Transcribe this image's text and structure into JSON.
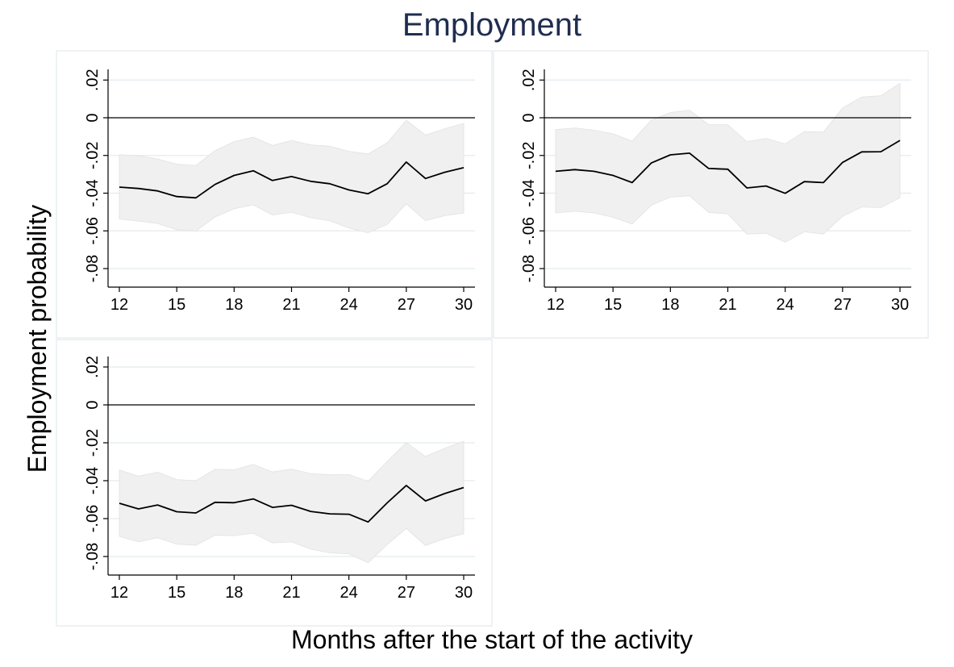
{
  "title": "Employment",
  "ylabel": "Employment probability",
  "xlabel": "Months after the start of the activity",
  "colors": {
    "title": "#1f2d4f",
    "line": "#000000",
    "band": "#f0f0f0",
    "band_edge": "#e2e2e2",
    "grid": "#e8eef0",
    "panel_border": "#dde6ea"
  },
  "chart_data": [
    {
      "type": "line",
      "x": [
        12,
        13,
        14,
        15,
        16,
        17,
        18,
        19,
        20,
        21,
        22,
        23,
        24,
        25,
        26,
        27,
        28,
        29,
        30
      ],
      "y": [
        -0.0368,
        -0.0375,
        -0.0388,
        -0.0418,
        -0.0425,
        -0.0354,
        -0.0306,
        -0.0281,
        -0.0333,
        -0.0312,
        -0.0337,
        -0.035,
        -0.0383,
        -0.0403,
        -0.035,
        -0.0235,
        -0.0322,
        -0.0289,
        -0.0265
      ],
      "ci_upper": [
        -0.0196,
        -0.0201,
        -0.0219,
        -0.0246,
        -0.0253,
        -0.0175,
        -0.0126,
        -0.0103,
        -0.0147,
        -0.012,
        -0.0144,
        -0.0151,
        -0.0178,
        -0.0192,
        -0.0133,
        -0.0013,
        -0.0092,
        -0.0058,
        -0.003
      ],
      "ci_lower": [
        -0.0537,
        -0.0548,
        -0.0561,
        -0.0594,
        -0.0601,
        -0.0526,
        -0.0483,
        -0.0462,
        -0.0516,
        -0.0501,
        -0.053,
        -0.0547,
        -0.0585,
        -0.061,
        -0.0566,
        -0.0457,
        -0.0546,
        -0.052,
        -0.0505
      ],
      "ylim": [
        -0.09,
        0.025
      ],
      "xticks": [
        "12",
        "15",
        "18",
        "21",
        "24",
        "27",
        "30"
      ],
      "yticks": [
        "-.08",
        "-.06",
        "-.04",
        "-.02",
        "0",
        ".02"
      ],
      "xlim": [
        12,
        30
      ]
    },
    {
      "type": "line",
      "x": [
        12,
        13,
        14,
        15,
        16,
        17,
        18,
        19,
        20,
        21,
        22,
        23,
        24,
        25,
        26,
        27,
        28,
        29,
        30
      ],
      "y": [
        -0.0284,
        -0.0275,
        -0.0284,
        -0.0306,
        -0.0344,
        -0.024,
        -0.0197,
        -0.0188,
        -0.0269,
        -0.0273,
        -0.0372,
        -0.0362,
        -0.0401,
        -0.0339,
        -0.0344,
        -0.0237,
        -0.0181,
        -0.018,
        -0.012
      ],
      "ci_upper": [
        -0.0063,
        -0.0054,
        -0.0066,
        -0.0085,
        -0.0124,
        -0.0013,
        0.0028,
        0.004,
        -0.0037,
        -0.0037,
        -0.0127,
        -0.0109,
        -0.0139,
        -0.0073,
        -0.0076,
        0.0052,
        0.011,
        0.0117,
        0.0183
      ],
      "ci_lower": [
        -0.0505,
        -0.0496,
        -0.0505,
        -0.0528,
        -0.0564,
        -0.0464,
        -0.0421,
        -0.0414,
        -0.0502,
        -0.051,
        -0.0617,
        -0.0613,
        -0.066,
        -0.0605,
        -0.0617,
        -0.0523,
        -0.0473,
        -0.0477,
        -0.0424
      ],
      "ylim": [
        -0.09,
        0.025
      ],
      "xticks": [
        "12",
        "15",
        "18",
        "21",
        "24",
        "27",
        "30"
      ],
      "yticks": [
        "-.08",
        "-.06",
        "-.04",
        "-.02",
        "0",
        ".02"
      ],
      "xlim": [
        12,
        30
      ]
    },
    {
      "type": "line",
      "x": [
        12,
        13,
        14,
        15,
        16,
        17,
        18,
        19,
        20,
        21,
        22,
        23,
        24,
        25,
        26,
        27,
        28,
        29,
        30
      ],
      "y": [
        -0.0519,
        -0.0549,
        -0.0528,
        -0.0564,
        -0.057,
        -0.0514,
        -0.0516,
        -0.0496,
        -0.0541,
        -0.053,
        -0.0562,
        -0.0575,
        -0.0577,
        -0.0618,
        -0.0517,
        -0.0425,
        -0.0507,
        -0.0468,
        -0.0436
      ],
      "ci_upper": [
        -0.0344,
        -0.0376,
        -0.0355,
        -0.0394,
        -0.04,
        -0.034,
        -0.0342,
        -0.0314,
        -0.0354,
        -0.0339,
        -0.0362,
        -0.0369,
        -0.0368,
        -0.0403,
        -0.0298,
        -0.0199,
        -0.0272,
        -0.023,
        -0.0192
      ],
      "ci_lower": [
        -0.0694,
        -0.0723,
        -0.0701,
        -0.0735,
        -0.0741,
        -0.0688,
        -0.069,
        -0.0677,
        -0.0728,
        -0.0723,
        -0.0761,
        -0.0781,
        -0.0787,
        -0.0833,
        -0.0737,
        -0.0652,
        -0.0742,
        -0.0706,
        -0.068
      ],
      "ylim": [
        -0.09,
        0.025
      ],
      "xticks": [
        "12",
        "15",
        "18",
        "21",
        "24",
        "27",
        "30"
      ],
      "yticks": [
        "-.08",
        "-.06",
        "-.04",
        "-.02",
        "0",
        ".02"
      ],
      "xlim": [
        12,
        30
      ]
    }
  ]
}
